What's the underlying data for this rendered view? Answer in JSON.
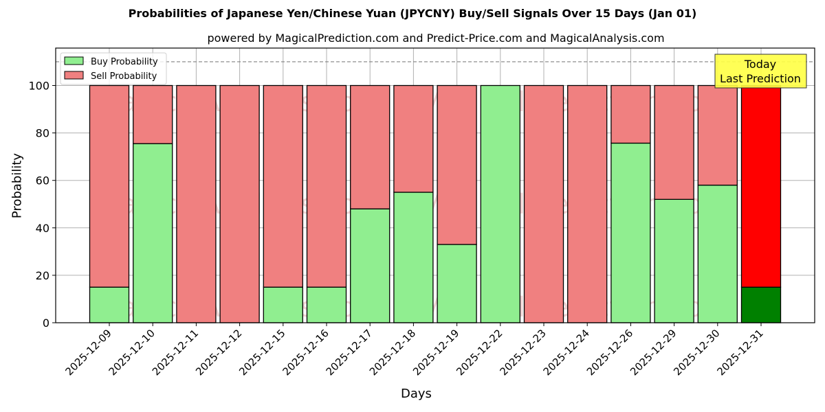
{
  "chart_data": {
    "type": "bar",
    "stacked": true,
    "title": "Probabilities of Japanese Yen/Chinese Yuan (JPYCNY) Buy/Sell Signals Over 15 Days (Jan 01)",
    "subtitle": "powered by MagicalPrediction.com and Predict-Price.com and MagicalAnalysis.com",
    "xlabel": "Days",
    "ylabel": "Probability",
    "ylim": [
      0,
      115
    ],
    "yticks": [
      0,
      20,
      40,
      60,
      80,
      100
    ],
    "grid": true,
    "legend_position": "upper left",
    "categories": [
      "2025-12-09",
      "2025-12-10",
      "2025-12-11",
      "2025-12-12",
      "2025-12-15",
      "2025-12-16",
      "2025-12-17",
      "2025-12-18",
      "2025-12-19",
      "2025-12-22",
      "2025-12-23",
      "2025-12-24",
      "2025-12-26",
      "2025-12-29",
      "2025-12-30",
      "2025-12-31"
    ],
    "series": [
      {
        "name": "Buy Probability",
        "color": "#90ee90",
        "values": [
          15,
          75.5,
          0,
          0,
          15,
          15,
          48,
          55,
          33,
          100,
          0,
          0,
          75.7,
          52,
          58,
          15
        ]
      },
      {
        "name": "Sell Probability",
        "color": "#f08080",
        "values": [
          85,
          24.5,
          100,
          100,
          85,
          85,
          52,
          45,
          67,
          0,
          100,
          100,
          24.3,
          48,
          42,
          85
        ]
      }
    ],
    "highlight": {
      "index": 15,
      "buy_color": "#008000",
      "sell_color": "#ff0000"
    },
    "reference_line": {
      "y": 110,
      "style": "dashed",
      "color": "#808080"
    },
    "annotation": {
      "line1": "Today",
      "line2": "Last Prediction",
      "background": "#ffff44"
    },
    "watermarks": [
      "MagicalAnalysis.com",
      "MagicalPrediction.com"
    ]
  }
}
